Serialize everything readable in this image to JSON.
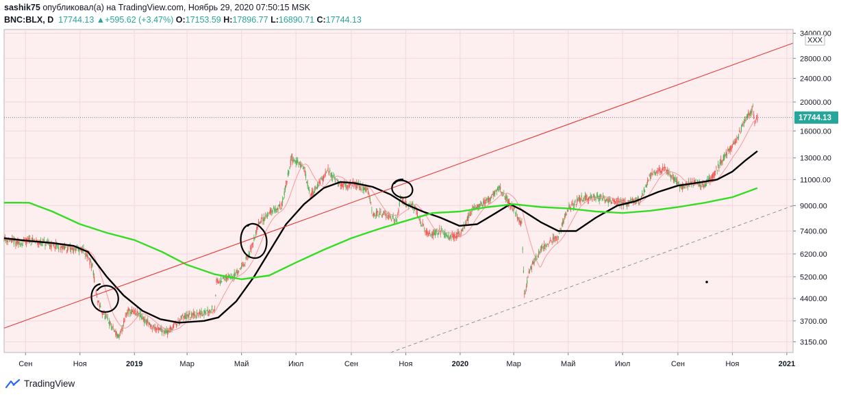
{
  "header": {
    "user": "sashik75",
    "published": "опубликовал(а) на TradingView.com, Ноябрь 29, 2020 07:50:15 MSK",
    "symbol": "BNC:BLX, D",
    "last": "17744.13",
    "arrow": "▲",
    "change": "+595.62 (+3.47%)",
    "o_label": "O:",
    "o_value": "17153.59",
    "h_label": "H:",
    "h_value": "17896.77",
    "l_label": "L:",
    "l_value": "16890.71",
    "c_label": "C:",
    "c_value": "17744.13"
  },
  "brand": {
    "name": "TradingView"
  },
  "colors": {
    "plot_bg": "#fdeef0",
    "up": "#4caf50",
    "down": "#ef5350",
    "ma_black": "#000000",
    "ma_green": "#33dd22",
    "ma_fast": "#f59a9a",
    "trendline": "#e53935",
    "dashed": "#888888",
    "last_price_bg": "#26a69a"
  },
  "chart_data": {
    "type": "line",
    "title": "BNC:BLX, D",
    "y_scale": "log",
    "ylim": [
      2900,
      35000
    ],
    "y_ticks": [
      "3150.00",
      "3700.00",
      "4400.00",
      "5200.00",
      "6200.00",
      "7400.00",
      "9000.00",
      "11000.00",
      "13000.00",
      "16000.00",
      "20000.00",
      "24000.00",
      "28000.00",
      "34000.00"
    ],
    "y_tick_values": [
      3150,
      3700,
      4400,
      5200,
      6200,
      7400,
      9000,
      11000,
      13000,
      16000,
      20000,
      24000,
      28000,
      34000
    ],
    "x_range": [
      "2018-08-08",
      "2021-01-08"
    ],
    "x_ticks": [
      {
        "label": "Сен",
        "date": "2018-09-01",
        "bold": false
      },
      {
        "label": "Ноя",
        "date": "2018-11-01",
        "bold": false
      },
      {
        "label": "2019",
        "date": "2019-01-01",
        "bold": true
      },
      {
        "label": "Мар",
        "date": "2019-03-01",
        "bold": false
      },
      {
        "label": "Май",
        "date": "2019-05-01",
        "bold": false
      },
      {
        "label": "Июл",
        "date": "2019-07-01",
        "bold": false
      },
      {
        "label": "Сен",
        "date": "2019-09-01",
        "bold": false
      },
      {
        "label": "Ноя",
        "date": "2019-11-01",
        "bold": false
      },
      {
        "label": "2020",
        "date": "2020-01-01",
        "bold": true
      },
      {
        "label": "Мар",
        "date": "2020-03-01",
        "bold": false
      },
      {
        "label": "Май",
        "date": "2020-05-01",
        "bold": false
      },
      {
        "label": "Июл",
        "date": "2020-07-01",
        "bold": false
      },
      {
        "label": "Сен",
        "date": "2020-09-01",
        "bold": false
      },
      {
        "label": "Ноя",
        "date": "2020-11-01",
        "bold": false
      },
      {
        "label": "2021",
        "date": "2021-01-01",
        "bold": true
      }
    ],
    "price_anchors": [
      [
        "2018-08-08",
        7000
      ],
      [
        "2018-08-25",
        6700
      ],
      [
        "2018-09-05",
        6900
      ],
      [
        "2018-09-25",
        6700
      ],
      [
        "2018-10-15",
        6500
      ],
      [
        "2018-11-05",
        6400
      ],
      [
        "2018-11-15",
        5600
      ],
      [
        "2018-11-20",
        4400
      ],
      [
        "2018-11-25",
        4000
      ],
      [
        "2018-12-05",
        3600
      ],
      [
        "2018-12-15",
        3250
      ],
      [
        "2018-12-24",
        4000
      ],
      [
        "2019-01-05",
        3900
      ],
      [
        "2019-01-20",
        3550
      ],
      [
        "2019-02-07",
        3400
      ],
      [
        "2019-02-24",
        3800
      ],
      [
        "2019-03-15",
        3900
      ],
      [
        "2019-04-01",
        4100
      ],
      [
        "2019-04-03",
        5000
      ],
      [
        "2019-04-25",
        5300
      ],
      [
        "2019-05-10",
        6200
      ],
      [
        "2019-05-20",
        7800
      ],
      [
        "2019-06-01",
        8500
      ],
      [
        "2019-06-15",
        9000
      ],
      [
        "2019-06-26",
        13000
      ],
      [
        "2019-07-10",
        12000
      ],
      [
        "2019-07-17",
        9700
      ],
      [
        "2019-08-06",
        11800
      ],
      [
        "2019-08-20",
        10500
      ],
      [
        "2019-09-05",
        10600
      ],
      [
        "2019-09-20",
        10100
      ],
      [
        "2019-09-25",
        8500
      ],
      [
        "2019-10-10",
        8400
      ],
      [
        "2019-10-22",
        8000
      ],
      [
        "2019-10-26",
        9500
      ],
      [
        "2019-11-10",
        8900
      ],
      [
        "2019-11-25",
        7200
      ],
      [
        "2019-12-10",
        7400
      ],
      [
        "2019-12-20",
        7100
      ],
      [
        "2020-01-01",
        7200
      ],
      [
        "2020-01-15",
        8800
      ],
      [
        "2020-02-01",
        9400
      ],
      [
        "2020-02-14",
        10300
      ],
      [
        "2020-03-01",
        8700
      ],
      [
        "2020-03-10",
        7800
      ],
      [
        "2020-03-13",
        4500
      ],
      [
        "2020-03-18",
        5400
      ],
      [
        "2020-04-01",
        6500
      ],
      [
        "2020-04-20",
        7100
      ],
      [
        "2020-05-01",
        8800
      ],
      [
        "2020-05-15",
        9500
      ],
      [
        "2020-06-01",
        9600
      ],
      [
        "2020-06-15",
        9400
      ],
      [
        "2020-07-01",
        9200
      ],
      [
        "2020-07-20",
        9300
      ],
      [
        "2020-08-01",
        11300
      ],
      [
        "2020-08-17",
        12000
      ],
      [
        "2020-09-05",
        10400
      ],
      [
        "2020-09-15",
        10800
      ],
      [
        "2020-10-01",
        10600
      ],
      [
        "2020-10-10",
        11300
      ],
      [
        "2020-10-21",
        12900
      ],
      [
        "2020-11-05",
        14800
      ],
      [
        "2020-11-18",
        18000
      ],
      [
        "2020-11-24",
        19000
      ],
      [
        "2020-11-26",
        17000
      ],
      [
        "2020-11-29",
        17744
      ]
    ],
    "series": [
      {
        "name": "MA slow (black)",
        "color": "#000000",
        "points": [
          [
            "2018-08-08",
            7000
          ],
          [
            "2018-09-05",
            6850
          ],
          [
            "2018-10-01",
            6750
          ],
          [
            "2018-10-25",
            6600
          ],
          [
            "2018-11-10",
            6300
          ],
          [
            "2018-12-01",
            5200
          ],
          [
            "2018-12-20",
            4500
          ],
          [
            "2019-01-10",
            4000
          ],
          [
            "2019-01-30",
            3750
          ],
          [
            "2019-02-20",
            3650
          ],
          [
            "2019-03-20",
            3700
          ],
          [
            "2019-04-05",
            3800
          ],
          [
            "2019-04-25",
            4300
          ],
          [
            "2019-05-15",
            5200
          ],
          [
            "2019-06-01",
            6300
          ],
          [
            "2019-06-20",
            7800
          ],
          [
            "2019-07-10",
            9100
          ],
          [
            "2019-08-01",
            10300
          ],
          [
            "2019-08-20",
            10800
          ],
          [
            "2019-09-05",
            10700
          ],
          [
            "2019-09-25",
            10400
          ],
          [
            "2019-10-15",
            9800
          ],
          [
            "2019-11-01",
            9100
          ],
          [
            "2019-11-20",
            8600
          ],
          [
            "2019-12-10",
            8200
          ],
          [
            "2019-12-31",
            7700
          ],
          [
            "2020-01-20",
            7800
          ],
          [
            "2020-02-10",
            8500
          ],
          [
            "2020-02-26",
            9100
          ],
          [
            "2020-03-10",
            8700
          ],
          [
            "2020-04-01",
            7900
          ],
          [
            "2020-04-20",
            7400
          ],
          [
            "2020-05-10",
            7400
          ],
          [
            "2020-06-01",
            8200
          ],
          [
            "2020-06-25",
            9000
          ],
          [
            "2020-07-15",
            9300
          ],
          [
            "2020-08-10",
            10000
          ],
          [
            "2020-09-01",
            10500
          ],
          [
            "2020-09-20",
            10700
          ],
          [
            "2020-10-15",
            11000
          ],
          [
            "2020-11-01",
            11700
          ],
          [
            "2020-11-15",
            12700
          ],
          [
            "2020-11-29",
            13700
          ]
        ]
      },
      {
        "name": "MA long (green)",
        "color": "#33dd22",
        "points": [
          [
            "2018-08-08",
            9200
          ],
          [
            "2018-09-05",
            9200
          ],
          [
            "2018-10-01",
            8600
          ],
          [
            "2018-11-01",
            7800
          ],
          [
            "2018-12-01",
            7300
          ],
          [
            "2019-01-01",
            6900
          ],
          [
            "2019-02-01",
            6300
          ],
          [
            "2019-03-01",
            5700
          ],
          [
            "2019-04-01",
            5300
          ],
          [
            "2019-05-01",
            5100
          ],
          [
            "2019-06-01",
            5250
          ],
          [
            "2019-07-01",
            5800
          ],
          [
            "2019-08-01",
            6400
          ],
          [
            "2019-09-01",
            7000
          ],
          [
            "2019-10-01",
            7500
          ],
          [
            "2019-11-01",
            8000
          ],
          [
            "2019-12-01",
            8500
          ],
          [
            "2020-01-01",
            8600
          ],
          [
            "2020-02-01",
            8900
          ],
          [
            "2020-03-01",
            9100
          ],
          [
            "2020-04-01",
            8900
          ],
          [
            "2020-05-01",
            8800
          ],
          [
            "2020-06-01",
            8600
          ],
          [
            "2020-07-01",
            8500
          ],
          [
            "2020-08-01",
            8650
          ],
          [
            "2020-09-01",
            8900
          ],
          [
            "2020-10-01",
            9200
          ],
          [
            "2020-11-01",
            9600
          ],
          [
            "2020-11-29",
            10300
          ]
        ]
      },
      {
        "name": "Trend line (red)",
        "color": "#e53935",
        "points": [
          [
            "2018-08-08",
            3500
          ],
          [
            "2021-01-08",
            31500
          ]
        ]
      },
      {
        "name": "Channel line (dashed)",
        "color": "#888888",
        "points": [
          [
            "2019-10-15",
            2900
          ],
          [
            "2021-01-08",
            9000
          ]
        ]
      }
    ]
  },
  "price_axis": {
    "last_price_label": "17744.13",
    "currency_badge": "XXX"
  }
}
